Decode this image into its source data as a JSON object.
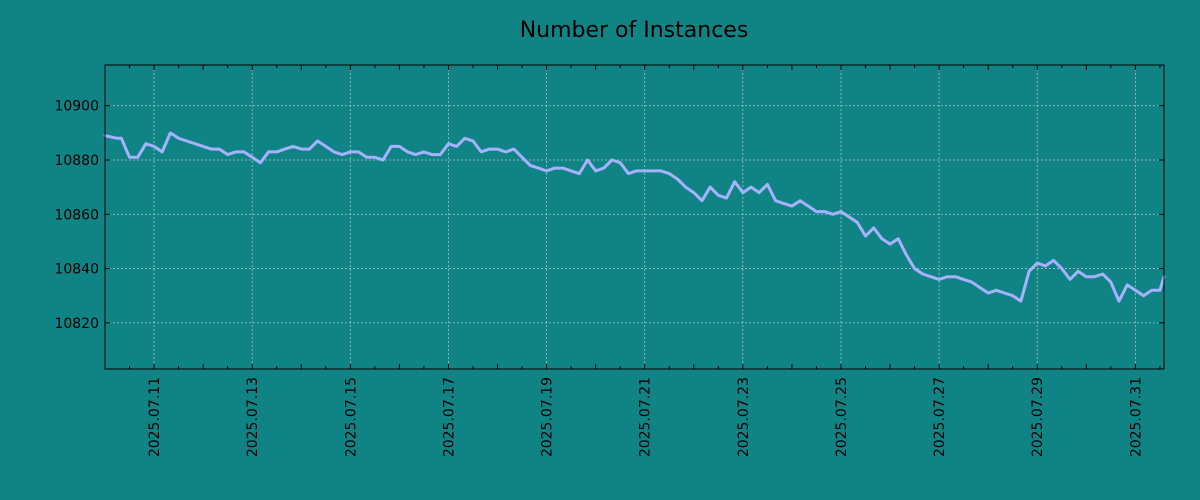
{
  "chart_data": {
    "type": "line",
    "title": "Number of Instances",
    "xlabel": "",
    "ylabel": "",
    "x_format": "date",
    "xlim": [
      "2025-07-10 00:00",
      "2025-07-31 14:00"
    ],
    "ylim": [
      10803,
      10915
    ],
    "yticks": [
      10820,
      10840,
      10860,
      10880,
      10900
    ],
    "xticks": [
      "2025.07.11",
      "2025.07.13",
      "2025.07.15",
      "2025.07.17",
      "2025.07.19",
      "2025.07.21",
      "2025.07.23",
      "2025.07.25",
      "2025.07.27",
      "2025.07.29",
      "2025.07.31"
    ],
    "grid": true,
    "colors": {
      "background": "#108385",
      "line": "#a6b2ff"
    },
    "series": [
      {
        "x": [
          "2025-07-10 00:00",
          "2025-07-10 06:00",
          "2025-07-10 08:00",
          "2025-07-10 12:00",
          "2025-07-10 16:00",
          "2025-07-10 20:00",
          "2025-07-11 00:00",
          "2025-07-11 04:00",
          "2025-07-11 08:00",
          "2025-07-11 12:00",
          "2025-07-11 16:00",
          "2025-07-11 20:00",
          "2025-07-12 00:00",
          "2025-07-12 04:00",
          "2025-07-12 08:00",
          "2025-07-12 12:00",
          "2025-07-12 16:00",
          "2025-07-12 20:00",
          "2025-07-13 00:00",
          "2025-07-13 04:00",
          "2025-07-13 08:00",
          "2025-07-13 12:00",
          "2025-07-13 16:00",
          "2025-07-13 20:00",
          "2025-07-14 00:00",
          "2025-07-14 04:00",
          "2025-07-14 08:00",
          "2025-07-14 12:00",
          "2025-07-14 16:00",
          "2025-07-14 20:00",
          "2025-07-15 00:00",
          "2025-07-15 04:00",
          "2025-07-15 08:00",
          "2025-07-15 12:00",
          "2025-07-15 16:00",
          "2025-07-15 20:00",
          "2025-07-16 00:00",
          "2025-07-16 04:00",
          "2025-07-16 08:00",
          "2025-07-16 12:00",
          "2025-07-16 16:00",
          "2025-07-16 20:00",
          "2025-07-17 00:00",
          "2025-07-17 04:00",
          "2025-07-17 08:00",
          "2025-07-17 12:00",
          "2025-07-17 16:00",
          "2025-07-17 20:00",
          "2025-07-18 00:00",
          "2025-07-18 04:00",
          "2025-07-18 08:00",
          "2025-07-18 12:00",
          "2025-07-18 16:00",
          "2025-07-18 20:00",
          "2025-07-19 00:00",
          "2025-07-19 04:00",
          "2025-07-19 08:00",
          "2025-07-19 12:00",
          "2025-07-19 16:00",
          "2025-07-19 20:00",
          "2025-07-20 00:00",
          "2025-07-20 04:00",
          "2025-07-20 08:00",
          "2025-07-20 12:00",
          "2025-07-20 16:00",
          "2025-07-20 20:00",
          "2025-07-21 00:00",
          "2025-07-21 04:00",
          "2025-07-21 08:00",
          "2025-07-21 12:00",
          "2025-07-21 16:00",
          "2025-07-21 20:00",
          "2025-07-22 00:00",
          "2025-07-22 04:00",
          "2025-07-22 08:00",
          "2025-07-22 12:00",
          "2025-07-22 16:00",
          "2025-07-22 20:00",
          "2025-07-23 00:00",
          "2025-07-23 04:00",
          "2025-07-23 08:00",
          "2025-07-23 12:00",
          "2025-07-23 16:00",
          "2025-07-23 20:00",
          "2025-07-24 00:00",
          "2025-07-24 04:00",
          "2025-07-24 08:00",
          "2025-07-24 12:00",
          "2025-07-24 16:00",
          "2025-07-24 20:00",
          "2025-07-25 00:00",
          "2025-07-25 04:00",
          "2025-07-25 08:00",
          "2025-07-25 12:00",
          "2025-07-25 16:00",
          "2025-07-25 20:00",
          "2025-07-26 00:00",
          "2025-07-26 04:00",
          "2025-07-26 08:00",
          "2025-07-26 12:00",
          "2025-07-26 16:00",
          "2025-07-26 20:00",
          "2025-07-27 00:00",
          "2025-07-27 04:00",
          "2025-07-27 08:00",
          "2025-07-27 12:00",
          "2025-07-27 16:00",
          "2025-07-27 20:00",
          "2025-07-28 00:00",
          "2025-07-28 04:00",
          "2025-07-28 08:00",
          "2025-07-28 12:00",
          "2025-07-28 16:00",
          "2025-07-28 20:00",
          "2025-07-29 00:00",
          "2025-07-29 04:00",
          "2025-07-29 08:00",
          "2025-07-29 12:00",
          "2025-07-29 16:00",
          "2025-07-29 20:00",
          "2025-07-30 00:00",
          "2025-07-30 04:00",
          "2025-07-30 08:00",
          "2025-07-30 12:00",
          "2025-07-30 16:00",
          "2025-07-30 20:00",
          "2025-07-31 00:00",
          "2025-07-31 04:00",
          "2025-07-31 08:00",
          "2025-07-31 12:00",
          "2025-07-31 14:00"
        ],
        "values": [
          10889,
          10888,
          10888,
          10881,
          10881,
          10886,
          10885,
          10883,
          10890,
          10888,
          10887,
          10886,
          10885,
          10884,
          10884,
          10882,
          10883,
          10883,
          10881,
          10879,
          10883,
          10883,
          10884,
          10885,
          10884,
          10884,
          10887,
          10885,
          10883,
          10882,
          10883,
          10883,
          10881,
          10881,
          10880,
          10885,
          10885,
          10883,
          10882,
          10883,
          10882,
          10882,
          10886,
          10885,
          10888,
          10887,
          10883,
          10884,
          10884,
          10883,
          10884,
          10881,
          10878,
          10877,
          10876,
          10877,
          10877,
          10876,
          10875,
          10880,
          10876,
          10877,
          10880,
          10879,
          10875,
          10876,
          10876,
          10876,
          10876,
          10875,
          10873,
          10870,
          10868,
          10865,
          10870,
          10867,
          10866,
          10872,
          10868,
          10870,
          10868,
          10871,
          10865,
          10864,
          10863,
          10865,
          10863,
          10861,
          10861,
          10860,
          10861,
          10859,
          10857,
          10852,
          10855,
          10851,
          10849,
          10851,
          10845,
          10840,
          10838,
          10837,
          10836,
          10837,
          10837,
          10836,
          10835,
          10833,
          10831,
          10832,
          10831,
          10830,
          10828,
          10839,
          10842,
          10841,
          10843,
          10840,
          10836,
          10839,
          10837,
          10837,
          10838,
          10835,
          10828,
          10834,
          10832,
          10830,
          10832,
          10832,
          10837
        ]
      }
    ]
  }
}
